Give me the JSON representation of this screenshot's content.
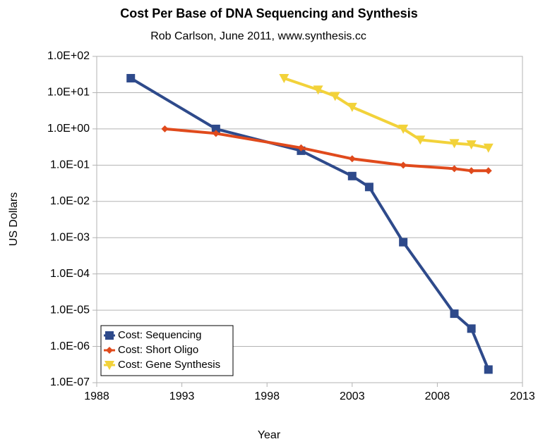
{
  "chart_data": {
    "type": "line",
    "title": "Cost Per Base of DNA Sequencing and Synthesis",
    "subtitle": "Rob Carlson, June 2011, www.synthesis.cc",
    "x_label": "Year",
    "y_label": "US Dollars",
    "log_y": true,
    "grid": true,
    "legend": "lower left",
    "xlim": [
      1988,
      2013
    ],
    "xticks": [
      1988,
      1993,
      1998,
      2003,
      2008,
      2013
    ],
    "ylim": [
      1e-07,
      100
    ],
    "yticks": [
      {
        "value": 100,
        "label": "1.0E+02"
      },
      {
        "value": 10,
        "label": "1.0E+01"
      },
      {
        "value": 1,
        "label": "1.0E+00"
      },
      {
        "value": 0.1,
        "label": "1.0E-01"
      },
      {
        "value": 0.01,
        "label": "1.0E-02"
      },
      {
        "value": 0.001,
        "label": "1.0E-03"
      },
      {
        "value": 0.0001,
        "label": "1.0E-04"
      },
      {
        "value": 1e-05,
        "label": "1.0E-05"
      },
      {
        "value": 1e-06,
        "label": "1.0E-06"
      },
      {
        "value": 1e-07,
        "label": "1.0E-07"
      }
    ],
    "series": [
      {
        "name": "Cost: Sequencing",
        "color": "#2e4a8b",
        "marker": "square",
        "x": [
          1990,
          1995,
          2000,
          2003,
          2004,
          2006,
          2009,
          2010,
          2011
        ],
        "values": [
          25,
          1.0,
          0.25,
          0.05,
          0.025,
          0.00075,
          8e-06,
          3.1e-06,
          2.3e-07
        ]
      },
      {
        "name": "Cost: Short Oligo",
        "color": "#e04a1c",
        "marker": "diamond",
        "x": [
          1992,
          1995,
          2000,
          2003,
          2006,
          2009,
          2010,
          2011
        ],
        "values": [
          1.0,
          0.75,
          0.3,
          0.15,
          0.1,
          0.08,
          0.07,
          0.07
        ]
      },
      {
        "name": "Cost: Gene Synthesis",
        "color": "#f2d23a",
        "marker": "triangle-down",
        "x": [
          1999,
          2001,
          2002,
          2003,
          2006,
          2007,
          2009,
          2010,
          2011
        ],
        "values": [
          25,
          12,
          8,
          4,
          1.0,
          0.5,
          0.4,
          0.37,
          0.3
        ]
      }
    ]
  }
}
